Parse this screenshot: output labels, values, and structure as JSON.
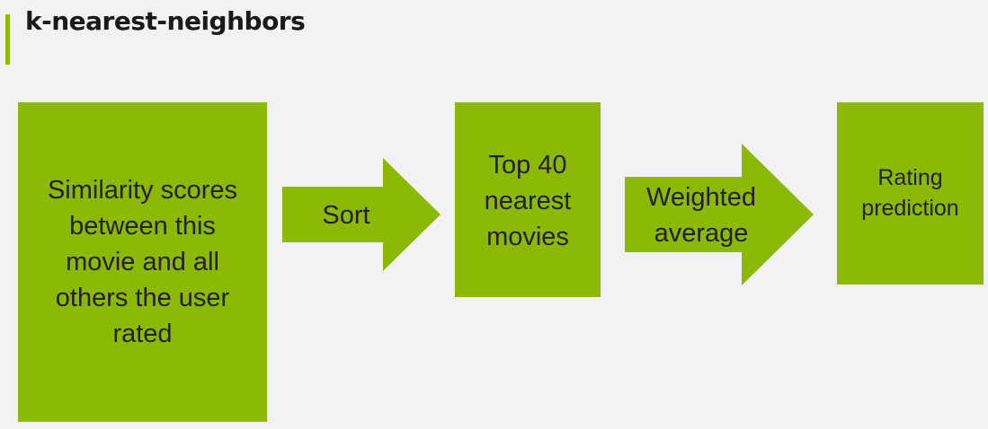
{
  "title": "k-nearest-neighbors",
  "colors": {
    "accent": "#8cb806",
    "background": "#f2f2f4",
    "text": "#222222"
  },
  "steps": [
    {
      "kind": "box",
      "label": "Similarity scores\nbetween this\nmovie and all\nothers the user\nrated"
    },
    {
      "kind": "arrow",
      "label": "Sort"
    },
    {
      "kind": "box",
      "label": "Top 40\nnearest\nmovies"
    },
    {
      "kind": "arrow",
      "label": "Weighted\naverage"
    },
    {
      "kind": "box",
      "label": "Rating\nprediction"
    }
  ]
}
